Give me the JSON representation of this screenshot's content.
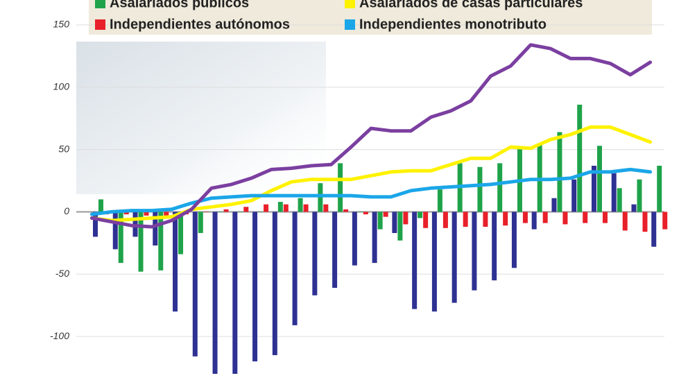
{
  "chart_data": {
    "type": "bar",
    "categories": [
      null,
      null,
      null,
      null,
      null,
      null,
      null,
      null,
      null,
      null,
      null,
      null,
      null,
      null,
      null,
      null,
      null,
      null,
      null,
      null,
      null,
      null,
      null,
      null,
      null,
      null,
      null,
      null,
      null
    ],
    "series": [
      {
        "type": "bar",
        "color": "#2e3192",
        "values": [
          -20,
          -30,
          -20,
          -27,
          -80,
          -116,
          -130,
          -130,
          -120,
          -115,
          -91,
          -67,
          -61,
          -43,
          -41,
          -17,
          -78,
          -80,
          -73,
          -63,
          -55,
          -45,
          -14,
          11,
          26,
          37,
          31,
          6,
          -28
        ]
      },
      {
        "name": "Asalariados públicos",
        "type": "bar",
        "color": "#1fa34a",
        "values": [
          10,
          -41,
          -48,
          -47,
          -34,
          -17,
          0,
          0,
          0,
          8,
          11,
          23,
          39,
          0,
          -14,
          -23,
          -5,
          18,
          39,
          36,
          39,
          52,
          55,
          64,
          86,
          53,
          19,
          26,
          37
        ]
      },
      {
        "name": "Independientes autónomos",
        "type": "bar",
        "color": "#e8202a",
        "values": [
          -2,
          -2,
          -3,
          -3,
          -2,
          0,
          2,
          4,
          6,
          6,
          6,
          6,
          2,
          -2,
          -4,
          -10,
          -13,
          -13,
          -12,
          -12,
          -11,
          -9,
          -9,
          -10,
          -9,
          -9,
          -15,
          -16,
          -14
        ]
      },
      {
        "name": "Asalariados de casas particulares",
        "type": "line",
        "color": "#fff200",
        "values": [
          -5,
          -7,
          -6,
          -5,
          -4,
          2,
          4,
          6,
          9,
          17,
          24,
          26,
          26,
          26,
          29,
          32,
          33,
          33,
          38,
          43,
          43,
          52,
          51,
          58,
          62,
          68,
          68,
          62,
          56
        ]
      },
      {
        "name": "Independientes monotributo",
        "type": "line",
        "color": "#1ba6e8",
        "values": [
          -2,
          0,
          1,
          1,
          2,
          7,
          11,
          12,
          13,
          13,
          13,
          13,
          13,
          13,
          12,
          12,
          17,
          19,
          20,
          21,
          22,
          24,
          26,
          26,
          27,
          32,
          32,
          34,
          32
        ]
      },
      {
        "type": "line",
        "color": "#7b3fa0",
        "values": [
          -5,
          -8,
          -11,
          -12,
          -7,
          2,
          19,
          22,
          27,
          34,
          35,
          37,
          38,
          52,
          67,
          65,
          65,
          76,
          81,
          89,
          109,
          117,
          134,
          131,
          123,
          123,
          119,
          110,
          120
        ]
      }
    ],
    "ylim": [
      -135,
      170
    ],
    "yticks": [
      -100,
      -50,
      0,
      50,
      100,
      150
    ],
    "grid": true
  }
}
